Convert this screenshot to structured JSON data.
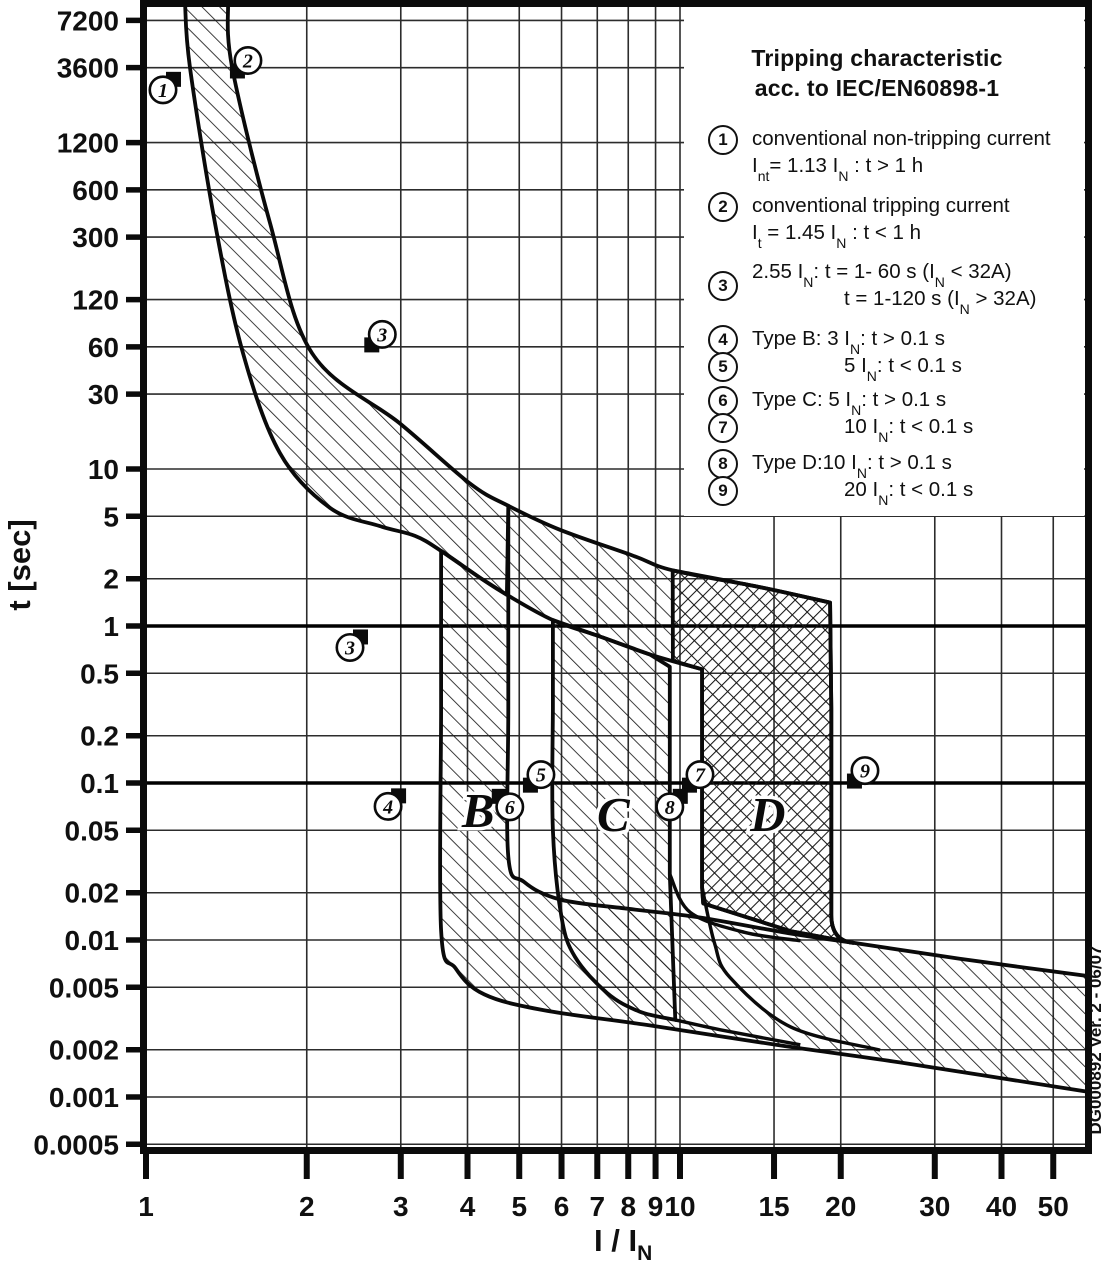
{
  "page": {
    "background": "#ffffff",
    "ink": "#111111",
    "grid_color": "#2c2c2c"
  },
  "legend": {
    "title_line1": "Tripping characteristic",
    "title_line2": "acc. to IEC/EN60898-1",
    "item_tops": [
      118,
      185,
      251,
      318,
      345,
      379,
      406,
      442,
      469
    ],
    "items": [
      {
        "num": "1",
        "lines": [
          {
            "seg": [
              {
                "t": "conventional non-tripping current"
              }
            ]
          },
          {
            "seg": [
              {
                "t": "I"
              },
              {
                "s": "nt"
              },
              {
                "t": "= 1.13 I"
              },
              {
                "s": "N"
              },
              {
                "t": " : t > 1 h"
              }
            ]
          }
        ]
      },
      {
        "num": "2",
        "lines": [
          {
            "seg": [
              {
                "t": "conventional tripping current"
              }
            ]
          },
          {
            "seg": [
              {
                "t": "I"
              },
              {
                "s": "t"
              },
              {
                "t": " = 1.45 I"
              },
              {
                "s": "N"
              },
              {
                "t": " : t < 1 h"
              }
            ]
          }
        ]
      },
      {
        "num": "3",
        "lines": [
          {
            "seg": [
              {
                "t": "2.55 I"
              },
              {
                "s": "N"
              },
              {
                "t": ": t = 1- 60 s (I"
              },
              {
                "s": "N"
              },
              {
                "t": " < 32A)"
              }
            ]
          },
          {
            "seg": [
              {
                "t": "t = 1-120 s (I"
              },
              {
                "s": "N"
              },
              {
                "t": " > 32A)"
              }
            ],
            "indent": true
          }
        ]
      },
      {
        "num": "4",
        "lines": [
          {
            "seg": [
              {
                "t": "Type B: 3 I"
              },
              {
                "s": "N"
              },
              {
                "t": ": t > 0.1 s"
              }
            ]
          }
        ]
      },
      {
        "num": "5",
        "lines": [
          {
            "seg": [
              {
                "t": "5 I"
              },
              {
                "s": "N"
              },
              {
                "t": ": t < 0.1 s"
              }
            ],
            "indent": true
          }
        ]
      },
      {
        "num": "6",
        "lines": [
          {
            "seg": [
              {
                "t": "Type C: 5 I"
              },
              {
                "s": "N"
              },
              {
                "t": ": t > 0.1 s"
              }
            ]
          }
        ]
      },
      {
        "num": "7",
        "lines": [
          {
            "seg": [
              {
                "t": "10 I"
              },
              {
                "s": "N"
              },
              {
                "t": ": t < 0.1 s"
              }
            ],
            "indent": true
          }
        ]
      },
      {
        "num": "8",
        "lines": [
          {
            "seg": [
              {
                "t": "Type D:10 I"
              },
              {
                "s": "N"
              },
              {
                "t": ": t > 0.1 s"
              }
            ]
          }
        ]
      },
      {
        "num": "9",
        "lines": [
          {
            "seg": [
              {
                "t": "20 I"
              },
              {
                "s": "N"
              },
              {
                "t": ": t < 0.1 s"
              }
            ],
            "indent": true
          }
        ]
      }
    ]
  },
  "footer_note": "DG000892 Ver. 2 - 06/07",
  "chart_data": {
    "type": "area",
    "title": "Tripping characteristic acc. to IEC/EN60898-1",
    "ylabel": "t [sec]",
    "xlabel_rich": [
      {
        "t": "I / I"
      },
      {
        "s": "N"
      }
    ],
    "x_scale": "log",
    "y_scale": "log",
    "xlim": [
      1,
      57
    ],
    "ylim": [
      0.0004,
      9000
    ],
    "grid": true,
    "x_ticks": [
      {
        "v": 1,
        "label": "1"
      },
      {
        "v": 2,
        "label": "2"
      },
      {
        "v": 3,
        "label": "3"
      },
      {
        "v": 4,
        "label": "4"
      },
      {
        "v": 5,
        "label": "5"
      },
      {
        "v": 6,
        "label": "6"
      },
      {
        "v": 7,
        "label": "7"
      },
      {
        "v": 8,
        "label": "8"
      },
      {
        "v": 9,
        "label": "9"
      },
      {
        "v": 10,
        "label": "10"
      },
      {
        "v": 15,
        "label": "15"
      },
      {
        "v": 20,
        "label": "20"
      },
      {
        "v": 30,
        "label": "30"
      },
      {
        "v": 40,
        "label": "40"
      },
      {
        "v": 50,
        "label": "50"
      }
    ],
    "y_ticks": [
      {
        "v": 7200,
        "label": "7200"
      },
      {
        "v": 3600,
        "label": "3600"
      },
      {
        "v": 1200,
        "label": "1200"
      },
      {
        "v": 600,
        "label": "600"
      },
      {
        "v": 300,
        "label": "300"
      },
      {
        "v": 120,
        "label": "120"
      },
      {
        "v": 60,
        "label": "60"
      },
      {
        "v": 30,
        "label": "30"
      },
      {
        "v": 10,
        "label": "10"
      },
      {
        "v": 5,
        "label": "5"
      },
      {
        "v": 2,
        "label": "2"
      },
      {
        "v": 1,
        "label": "1"
      },
      {
        "v": 0.5,
        "label": "0.5"
      },
      {
        "v": 0.2,
        "label": "0.2"
      },
      {
        "v": 0.1,
        "label": "0.1"
      },
      {
        "v": 0.05,
        "label": "0.05"
      },
      {
        "v": 0.02,
        "label": "0.02"
      },
      {
        "v": 0.01,
        "label": "0.01"
      },
      {
        "v": 0.005,
        "label": "0.005"
      },
      {
        "v": 0.002,
        "label": "0.002"
      },
      {
        "v": 0.001,
        "label": "0.001"
      },
      {
        "v": 0.0005,
        "label": "0.0005"
      }
    ],
    "heavy_y_gridlines": [
      1,
      0.1
    ],
    "type_bands": {
      "B": {
        "magnetic_trip_range_IN": [
          3,
          5
        ]
      },
      "C": {
        "magnetic_trip_range_IN": [
          5,
          10
        ]
      },
      "D": {
        "magnetic_trip_range_IN": [
          10,
          20
        ]
      }
    },
    "thermal_limits": {
      "non_tripping_IN": 1.13,
      "tripping_IN": 1.45,
      "point_2_55_IN": {
        "t_under_32A": [
          1,
          60
        ],
        "t_over_32A": [
          1,
          120
        ]
      }
    },
    "curves": {
      "c2_upper_thermal": [
        [
          1.424,
          9373
        ],
        [
          1.45,
          3600
        ],
        [
          1.706,
          371
        ],
        [
          2.046,
          54.7
        ],
        [
          2.99,
          19.5
        ],
        [
          4.04,
          8.1
        ],
        [
          4.77,
          5.83
        ],
        [
          5.96,
          4.1
        ],
        [
          8.16,
          2.81
        ],
        [
          9.69,
          2.26
        ],
        [
          14.1,
          1.77
        ],
        [
          19.1,
          1.41
        ]
      ],
      "c1_lower_thermal": [
        [
          1.183,
          9373
        ],
        [
          1.209,
          3600
        ],
        [
          1.346,
          371
        ],
        [
          1.519,
          54.7
        ],
        [
          1.782,
          12.6
        ],
        [
          2.21,
          5.66
        ],
        [
          2.74,
          4.33
        ],
        [
          3.19,
          3.75
        ],
        [
          3.57,
          3.01
        ],
        [
          4.22,
          2.03
        ],
        [
          4.74,
          1.58
        ],
        [
          5.78,
          1.09
        ],
        [
          7.08,
          0.857
        ],
        [
          8.78,
          0.659
        ],
        [
          11.0,
          0.53
        ]
      ],
      "band_top": [
        [
          4.77,
          5.83
        ],
        [
          4.77,
          0.3
        ],
        [
          4.77,
          0.034
        ],
        [
          5.1,
          0.0235
        ],
        [
          5.96,
          0.0181
        ],
        [
          8,
          0.0158
        ],
        [
          10.9,
          0.0139
        ],
        [
          16.1,
          0.011
        ],
        [
          21.1,
          0.0096
        ],
        [
          33.4,
          0.0076
        ],
        [
          60,
          0.0058
        ]
      ],
      "band_bottom": [
        [
          3.57,
          3.01
        ],
        [
          3.57,
          0.3
        ],
        [
          3.57,
          0.0115
        ],
        [
          3.8,
          0.0066
        ],
        [
          4.3,
          0.0045
        ],
        [
          5.58,
          0.00356
        ],
        [
          8.78,
          0.00286
        ],
        [
          15.4,
          0.00213
        ],
        [
          25.8,
          0.00166
        ],
        [
          60,
          0.00106
        ]
      ],
      "c_lower_edge": [
        [
          5.78,
          0.3
        ],
        [
          5.78,
          0.05
        ],
        [
          6.0,
          0.014
        ],
        [
          6.36,
          0.0078
        ],
        [
          7.3,
          0.0046
        ],
        [
          8.4,
          0.0035
        ],
        [
          9.8,
          0.0031
        ]
      ],
      "c_lower_tail": [
        [
          9.8,
          0.0031
        ],
        [
          11.9,
          0.00268
        ],
        [
          16.8,
          0.00215
        ]
      ],
      "c_upper_tail": [
        [
          9.57,
          0.0262
        ],
        [
          10.45,
          0.015
        ],
        [
          13.2,
          0.0112
        ],
        [
          16.8,
          0.0099
        ]
      ],
      "d_lower_tail": [
        [
          11.0,
          0.0216
        ],
        [
          11.6,
          0.0096
        ],
        [
          12.4,
          0.00578
        ],
        [
          16.1,
          0.0028
        ],
        [
          23.7,
          0.00199
        ]
      ]
    },
    "letters": [
      {
        "text": "B",
        "v": 4.19,
        "t": 0.0673
      },
      {
        "text": "C",
        "v": 7.5,
        "t": 0.0634
      },
      {
        "text": "D",
        "v": 14.6,
        "t": 0.0634
      }
    ],
    "annotations": [
      {
        "label": "1",
        "v": 1.076,
        "t": 2600,
        "flag": "ne"
      },
      {
        "label": "2",
        "v": 1.552,
        "t": 4000,
        "flag": "sw"
      },
      {
        "label": "3",
        "v": 2.77,
        "t": 72,
        "flag": "sw"
      },
      {
        "label": "3",
        "v": 2.41,
        "t": 0.73,
        "flag": "ne"
      },
      {
        "label": "4",
        "v": 2.84,
        "t": 0.071,
        "flag": "ne"
      },
      {
        "label": "5",
        "v": 5.49,
        "t": 0.113,
        "flag": "sw"
      },
      {
        "label": "6",
        "v": 4.8,
        "t": 0.0705,
        "flag": "nw"
      },
      {
        "label": "7",
        "v": 10.9,
        "t": 0.113,
        "flag": "sw"
      },
      {
        "label": "8",
        "v": 9.57,
        "t": 0.0705,
        "flag": "ne"
      },
      {
        "label": "9",
        "v": 22.2,
        "t": 0.12,
        "flag": "sw"
      }
    ]
  }
}
